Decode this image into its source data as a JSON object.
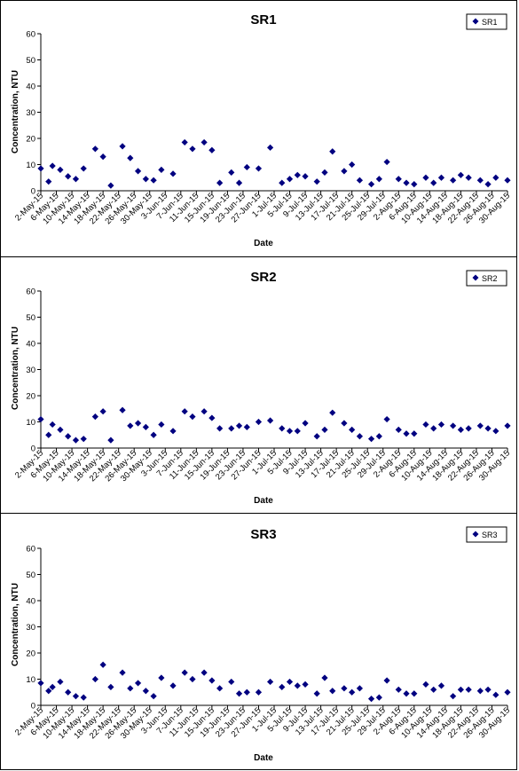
{
  "chart_data": [
    {
      "type": "scatter",
      "title": "SR1",
      "xlabel": "Date",
      "ylabel": "Concentration, NTU",
      "ylim": [
        0,
        60
      ],
      "yticks": [
        0,
        10,
        20,
        30,
        40,
        50,
        60
      ],
      "grid": false,
      "legend_position": "top-right",
      "series": [
        {
          "name": "SR1",
          "color": "#000080",
          "marker": "diamond",
          "points": [
            {
              "x": "2-May-15",
              "y": 8.5
            },
            {
              "x": "4-May-15",
              "y": 3.5
            },
            {
              "x": "5-May-15",
              "y": 9.5
            },
            {
              "x": "7-May-15",
              "y": 8
            },
            {
              "x": "9-May-15",
              "y": 5.5
            },
            {
              "x": "11-May-15",
              "y": 4.5
            },
            {
              "x": "13-May-15",
              "y": 8.5
            },
            {
              "x": "16-May-15",
              "y": 16
            },
            {
              "x": "18-May-15",
              "y": 13
            },
            {
              "x": "20-May-15",
              "y": 2
            },
            {
              "x": "23-May-15",
              "y": 17
            },
            {
              "x": "25-May-15",
              "y": 12.5
            },
            {
              "x": "27-May-15",
              "y": 7.5
            },
            {
              "x": "29-May-15",
              "y": 4.5
            },
            {
              "x": "31-May-15",
              "y": 4
            },
            {
              "x": "2-Jun-15",
              "y": 8
            },
            {
              "x": "5-Jun-15",
              "y": 6.5
            },
            {
              "x": "8-Jun-15",
              "y": 18.5
            },
            {
              "x": "10-Jun-15",
              "y": 16
            },
            {
              "x": "13-Jun-15",
              "y": 18.5
            },
            {
              "x": "15-Jun-15",
              "y": 15.5
            },
            {
              "x": "17-Jun-15",
              "y": 3
            },
            {
              "x": "20-Jun-15",
              "y": 7
            },
            {
              "x": "22-Jun-15",
              "y": 3
            },
            {
              "x": "24-Jun-15",
              "y": 9
            },
            {
              "x": "27-Jun-15",
              "y": 8.5
            },
            {
              "x": "30-Jun-15",
              "y": 16.5
            },
            {
              "x": "3-Jul-15",
              "y": 3
            },
            {
              "x": "5-Jul-15",
              "y": 4.5
            },
            {
              "x": "7-Jul-15",
              "y": 6
            },
            {
              "x": "9-Jul-15",
              "y": 5.5
            },
            {
              "x": "12-Jul-15",
              "y": 3.5
            },
            {
              "x": "14-Jul-15",
              "y": 7
            },
            {
              "x": "16-Jul-15",
              "y": 15
            },
            {
              "x": "19-Jul-15",
              "y": 7.5
            },
            {
              "x": "21-Jul-15",
              "y": 10
            },
            {
              "x": "23-Jul-15",
              "y": 4
            },
            {
              "x": "26-Jul-15",
              "y": 2.5
            },
            {
              "x": "28-Jul-15",
              "y": 4.5
            },
            {
              "x": "30-Jul-15",
              "y": 11
            },
            {
              "x": "2-Aug-15",
              "y": 4.5
            },
            {
              "x": "4-Aug-15",
              "y": 3
            },
            {
              "x": "6-Aug-15",
              "y": 2.5
            },
            {
              "x": "9-Aug-15",
              "y": 5
            },
            {
              "x": "11-Aug-15",
              "y": 3
            },
            {
              "x": "13-Aug-15",
              "y": 5
            },
            {
              "x": "16-Aug-15",
              "y": 4
            },
            {
              "x": "18-Aug-15",
              "y": 6
            },
            {
              "x": "20-Aug-15",
              "y": 5
            },
            {
              "x": "23-Aug-15",
              "y": 4
            },
            {
              "x": "25-Aug-15",
              "y": 2.5
            },
            {
              "x": "27-Aug-15",
              "y": 5
            },
            {
              "x": "30-Aug-15",
              "y": 4
            }
          ]
        }
      ]
    },
    {
      "type": "scatter",
      "title": "SR2",
      "xlabel": "Date",
      "ylabel": "Concentration, NTU",
      "ylim": [
        0,
        60
      ],
      "yticks": [
        0,
        10,
        20,
        30,
        40,
        50,
        60
      ],
      "grid": false,
      "legend_position": "top-right",
      "series": [
        {
          "name": "SR2",
          "color": "#000080",
          "marker": "diamond",
          "points": [
            {
              "x": "2-May-15",
              "y": 11
            },
            {
              "x": "4-May-15",
              "y": 5
            },
            {
              "x": "5-May-15",
              "y": 9
            },
            {
              "x": "7-May-15",
              "y": 7
            },
            {
              "x": "9-May-15",
              "y": 4.5
            },
            {
              "x": "11-May-15",
              "y": 3
            },
            {
              "x": "13-May-15",
              "y": 3.5
            },
            {
              "x": "16-May-15",
              "y": 12
            },
            {
              "x": "18-May-15",
              "y": 14
            },
            {
              "x": "20-May-15",
              "y": 3
            },
            {
              "x": "23-May-15",
              "y": 14.5
            },
            {
              "x": "25-May-15",
              "y": 8.5
            },
            {
              "x": "27-May-15",
              "y": 9.5
            },
            {
              "x": "29-May-15",
              "y": 8
            },
            {
              "x": "31-May-15",
              "y": 5
            },
            {
              "x": "2-Jun-15",
              "y": 9
            },
            {
              "x": "5-Jun-15",
              "y": 6.5
            },
            {
              "x": "8-Jun-15",
              "y": 14
            },
            {
              "x": "10-Jun-15",
              "y": 12
            },
            {
              "x": "13-Jun-15",
              "y": 14
            },
            {
              "x": "15-Jun-15",
              "y": 11.5
            },
            {
              "x": "17-Jun-15",
              "y": 7.5
            },
            {
              "x": "20-Jun-15",
              "y": 7.5
            },
            {
              "x": "22-Jun-15",
              "y": 8.5
            },
            {
              "x": "24-Jun-15",
              "y": 8
            },
            {
              "x": "27-Jun-15",
              "y": 10
            },
            {
              "x": "30-Jun-15",
              "y": 10.5
            },
            {
              "x": "3-Jul-15",
              "y": 7.5
            },
            {
              "x": "5-Jul-15",
              "y": 6.5
            },
            {
              "x": "7-Jul-15",
              "y": 6.5
            },
            {
              "x": "9-Jul-15",
              "y": 9.5
            },
            {
              "x": "12-Jul-15",
              "y": 4.5
            },
            {
              "x": "14-Jul-15",
              "y": 7
            },
            {
              "x": "16-Jul-15",
              "y": 13.5
            },
            {
              "x": "19-Jul-15",
              "y": 9.5
            },
            {
              "x": "21-Jul-15",
              "y": 7
            },
            {
              "x": "23-Jul-15",
              "y": 4.5
            },
            {
              "x": "26-Jul-15",
              "y": 3.5
            },
            {
              "x": "28-Jul-15",
              "y": 4.5
            },
            {
              "x": "30-Jul-15",
              "y": 11
            },
            {
              "x": "2-Aug-15",
              "y": 7
            },
            {
              "x": "4-Aug-15",
              "y": 5.5
            },
            {
              "x": "6-Aug-15",
              "y": 5.5
            },
            {
              "x": "9-Aug-15",
              "y": 9
            },
            {
              "x": "11-Aug-15",
              "y": 7.5
            },
            {
              "x": "13-Aug-15",
              "y": 9
            },
            {
              "x": "16-Aug-15",
              "y": 8.5
            },
            {
              "x": "18-Aug-15",
              "y": 7
            },
            {
              "x": "20-Aug-15",
              "y": 7.5
            },
            {
              "x": "23-Aug-15",
              "y": 8.5
            },
            {
              "x": "25-Aug-15",
              "y": 7.5
            },
            {
              "x": "27-Aug-15",
              "y": 6.5
            },
            {
              "x": "30-Aug-15",
              "y": 8.5
            }
          ]
        }
      ]
    },
    {
      "type": "scatter",
      "title": "SR3",
      "xlabel": "Date",
      "ylabel": "Concentration, NTU",
      "ylim": [
        0,
        60
      ],
      "yticks": [
        0,
        10,
        20,
        30,
        40,
        50,
        60
      ],
      "grid": false,
      "legend_position": "top-right",
      "series": [
        {
          "name": "SR3",
          "color": "#000080",
          "marker": "diamond",
          "points": [
            {
              "x": "2-May-15",
              "y": 8.5
            },
            {
              "x": "4-May-15",
              "y": 5.5
            },
            {
              "x": "5-May-15",
              "y": 7
            },
            {
              "x": "7-May-15",
              "y": 9
            },
            {
              "x": "9-May-15",
              "y": 5
            },
            {
              "x": "11-May-15",
              "y": 3.5
            },
            {
              "x": "13-May-15",
              "y": 3
            },
            {
              "x": "16-May-15",
              "y": 10
            },
            {
              "x": "18-May-15",
              "y": 15.5
            },
            {
              "x": "20-May-15",
              "y": 7
            },
            {
              "x": "23-May-15",
              "y": 12.5
            },
            {
              "x": "25-May-15",
              "y": 6.5
            },
            {
              "x": "27-May-15",
              "y": 8.5
            },
            {
              "x": "29-May-15",
              "y": 5.5
            },
            {
              "x": "31-May-15",
              "y": 3.5
            },
            {
              "x": "2-Jun-15",
              "y": 10.5
            },
            {
              "x": "5-Jun-15",
              "y": 7.5
            },
            {
              "x": "8-Jun-15",
              "y": 12.5
            },
            {
              "x": "10-Jun-15",
              "y": 10
            },
            {
              "x": "13-Jun-15",
              "y": 12.5
            },
            {
              "x": "15-Jun-15",
              "y": 9.5
            },
            {
              "x": "17-Jun-15",
              "y": 6.5
            },
            {
              "x": "20-Jun-15",
              "y": 9
            },
            {
              "x": "22-Jun-15",
              "y": 4.5
            },
            {
              "x": "24-Jun-15",
              "y": 5
            },
            {
              "x": "27-Jun-15",
              "y": 5
            },
            {
              "x": "30-Jun-15",
              "y": 9
            },
            {
              "x": "3-Jul-15",
              "y": 7
            },
            {
              "x": "5-Jul-15",
              "y": 9
            },
            {
              "x": "7-Jul-15",
              "y": 7.5
            },
            {
              "x": "9-Jul-15",
              "y": 8
            },
            {
              "x": "12-Jul-15",
              "y": 4.5
            },
            {
              "x": "14-Jul-15",
              "y": 10.5
            },
            {
              "x": "16-Jul-15",
              "y": 5.5
            },
            {
              "x": "19-Jul-15",
              "y": 6.5
            },
            {
              "x": "21-Jul-15",
              "y": 5
            },
            {
              "x": "23-Jul-15",
              "y": 6.5
            },
            {
              "x": "26-Jul-15",
              "y": 2.5
            },
            {
              "x": "28-Jul-15",
              "y": 3
            },
            {
              "x": "30-Jul-15",
              "y": 9.5
            },
            {
              "x": "2-Aug-15",
              "y": 6
            },
            {
              "x": "4-Aug-15",
              "y": 4.5
            },
            {
              "x": "6-Aug-15",
              "y": 4.5
            },
            {
              "x": "9-Aug-15",
              "y": 8
            },
            {
              "x": "11-Aug-15",
              "y": 6
            },
            {
              "x": "13-Aug-15",
              "y": 7.5
            },
            {
              "x": "16-Aug-15",
              "y": 3.5
            },
            {
              "x": "18-Aug-15",
              "y": 6
            },
            {
              "x": "20-Aug-15",
              "y": 6
            },
            {
              "x": "23-Aug-15",
              "y": 5.5
            },
            {
              "x": "25-Aug-15",
              "y": 6
            },
            {
              "x": "27-Aug-15",
              "y": 4
            },
            {
              "x": "30-Aug-15",
              "y": 5
            }
          ]
        }
      ]
    }
  ],
  "x_tick_labels": [
    "2-May-15",
    "6-May-15",
    "10-May-15",
    "14-May-15",
    "18-May-15",
    "22-May-15",
    "26-May-15",
    "30-May-15",
    "3-Jun-15",
    "7-Jun-15",
    "11-Jun-15",
    "15-Jun-15",
    "19-Jun-15",
    "23-Jun-15",
    "27-Jun-15",
    "1-Jul-15",
    "5-Jul-15",
    "9-Jul-15",
    "13-Jul-15",
    "17-Jul-15",
    "21-Jul-15",
    "25-Jul-15",
    "29-Jul-15",
    "2-Aug-15",
    "6-Aug-15",
    "10-Aug-15",
    "14-Aug-15",
    "18-Aug-15",
    "22-Aug-15",
    "26-Aug-15",
    "30-Aug-15"
  ]
}
